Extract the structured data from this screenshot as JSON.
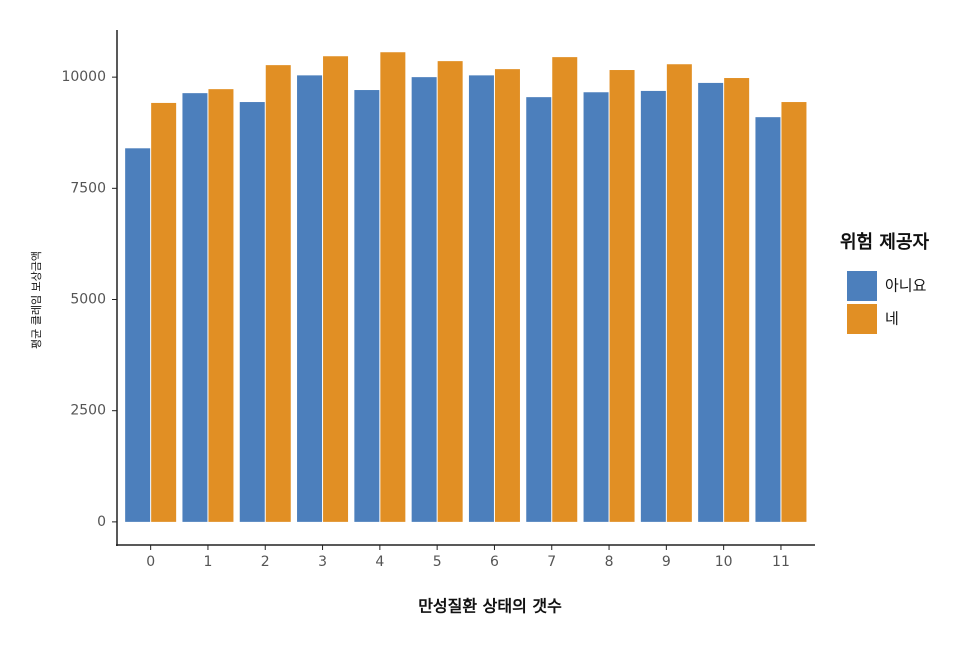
{
  "chart_data": {
    "type": "bar",
    "x_label": "만성질환 상태의 갯수",
    "y_label": "평균 클레임 보상금액",
    "legend_title": "위험 제공자",
    "legend_position": "right",
    "grid": false,
    "categories": [
      "0",
      "1",
      "2",
      "3",
      "4",
      "5",
      "6",
      "7",
      "8",
      "9",
      "10",
      "11"
    ],
    "series": [
      {
        "name": "아니요",
        "color": "#4c7fbc",
        "values": [
          8400,
          9640,
          9440,
          10040,
          9710,
          10000,
          10040,
          9550,
          9660,
          9690,
          9870,
          9100
        ]
      },
      {
        "name": "네",
        "color": "#e18f24",
        "values": [
          9420,
          9730,
          10270,
          10470,
          10560,
          10360,
          10180,
          10450,
          10160,
          10290,
          9980,
          9440
        ]
      }
    ],
    "ylim": [
      -520,
      11060
    ],
    "yticks": [
      0,
      2500,
      5000,
      7500,
      10000
    ]
  }
}
